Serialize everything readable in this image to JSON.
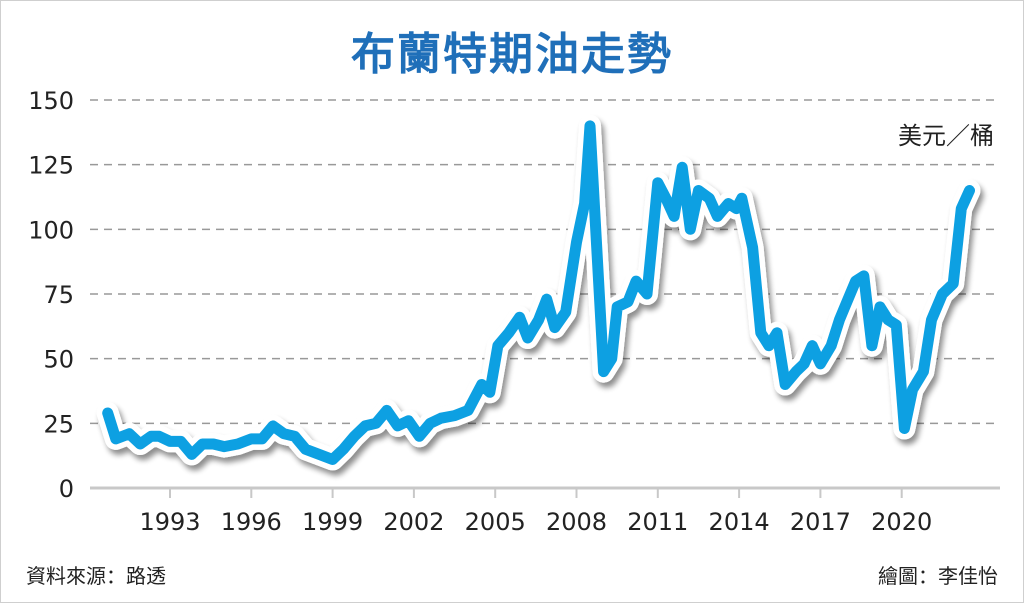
{
  "chart_data": {
    "type": "line",
    "title": "布蘭特期油走勢",
    "ylabel": "美元／桶",
    "xlabel": "",
    "ylim": [
      0,
      150
    ],
    "yticks": [
      0,
      25,
      50,
      75,
      100,
      125,
      150
    ],
    "xticks": [
      1993,
      1996,
      1999,
      2002,
      2005,
      2008,
      2011,
      2014,
      2017,
      2020
    ],
    "grid": "horizontal-dashed",
    "color": "#0aa0e2",
    "series": [
      {
        "name": "Brent",
        "points": [
          [
            1990.7,
            29
          ],
          [
            1991.0,
            19
          ],
          [
            1991.5,
            21
          ],
          [
            1991.9,
            17
          ],
          [
            1992.3,
            20
          ],
          [
            1992.6,
            20
          ],
          [
            1993.0,
            18
          ],
          [
            1993.4,
            18
          ],
          [
            1993.8,
            13
          ],
          [
            1994.2,
            17
          ],
          [
            1994.6,
            17
          ],
          [
            1995.0,
            16
          ],
          [
            1995.5,
            17
          ],
          [
            1996.0,
            19
          ],
          [
            1996.4,
            19
          ],
          [
            1996.8,
            24
          ],
          [
            1997.2,
            21
          ],
          [
            1997.6,
            20
          ],
          [
            1998.0,
            15
          ],
          [
            1998.5,
            13
          ],
          [
            1999.0,
            11
          ],
          [
            1999.4,
            15
          ],
          [
            1999.8,
            20
          ],
          [
            2000.2,
            24
          ],
          [
            2000.6,
            25
          ],
          [
            2001.0,
            30
          ],
          [
            2001.4,
            24
          ],
          [
            2001.8,
            26
          ],
          [
            2002.2,
            20
          ],
          [
            2002.6,
            25
          ],
          [
            2003.0,
            27
          ],
          [
            2003.5,
            28
          ],
          [
            2004.0,
            30
          ],
          [
            2004.5,
            40
          ],
          [
            2004.8,
            37
          ],
          [
            2005.1,
            55
          ],
          [
            2005.5,
            60
          ],
          [
            2005.9,
            66
          ],
          [
            2006.2,
            58
          ],
          [
            2006.6,
            65
          ],
          [
            2006.9,
            73
          ],
          [
            2007.2,
            62
          ],
          [
            2007.6,
            68
          ],
          [
            2008.0,
            95
          ],
          [
            2008.3,
            110
          ],
          [
            2008.5,
            140
          ],
          [
            2009.0,
            45
          ],
          [
            2009.3,
            50
          ],
          [
            2009.5,
            70
          ],
          [
            2009.9,
            72
          ],
          [
            2010.2,
            80
          ],
          [
            2010.6,
            75
          ],
          [
            2011.0,
            118
          ],
          [
            2011.3,
            112
          ],
          [
            2011.6,
            105
          ],
          [
            2011.9,
            124
          ],
          [
            2012.2,
            100
          ],
          [
            2012.5,
            115
          ],
          [
            2012.9,
            112
          ],
          [
            2013.2,
            105
          ],
          [
            2013.6,
            110
          ],
          [
            2013.9,
            108
          ],
          [
            2014.1,
            112
          ],
          [
            2014.5,
            93
          ],
          [
            2014.8,
            60
          ],
          [
            2015.1,
            55
          ],
          [
            2015.4,
            60
          ],
          [
            2015.7,
            40
          ],
          [
            2016.1,
            45
          ],
          [
            2016.4,
            48
          ],
          [
            2016.7,
            55
          ],
          [
            2017.0,
            48
          ],
          [
            2017.4,
            55
          ],
          [
            2017.7,
            65
          ],
          [
            2017.9,
            70
          ],
          [
            2018.3,
            80
          ],
          [
            2018.6,
            82
          ],
          [
            2018.9,
            55
          ],
          [
            2019.2,
            70
          ],
          [
            2019.5,
            65
          ],
          [
            2019.8,
            63
          ],
          [
            2020.1,
            23
          ],
          [
            2020.4,
            38
          ],
          [
            2020.8,
            45
          ],
          [
            2021.1,
            65
          ],
          [
            2021.5,
            75
          ],
          [
            2021.9,
            79
          ],
          [
            2022.2,
            108
          ],
          [
            2022.5,
            115
          ]
        ]
      }
    ]
  },
  "footer": {
    "source": "資料來源：路透",
    "credit": "繪圖：李佳怡"
  }
}
